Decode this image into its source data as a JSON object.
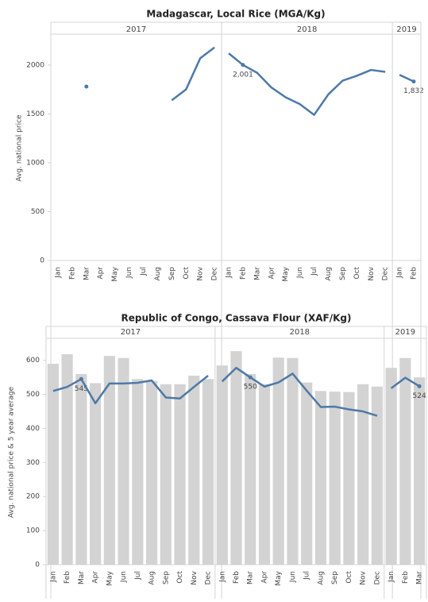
{
  "chart_data": [
    {
      "type": "line",
      "title": "Madagascar, Local Rice (MGA/Kg)",
      "y_label": "Avg. national price",
      "ylim": [
        0,
        2300
      ],
      "yticks": [
        0,
        500,
        1000,
        1500,
        2000
      ],
      "color": "#4e79a7",
      "panels": [
        {
          "label": "2017",
          "categories": [
            "Jan",
            "Feb",
            "Mar",
            "Apr",
            "May",
            "Jun",
            "Jul",
            "Aug",
            "Sep",
            "Oct",
            "Nov",
            "Dec"
          ],
          "values": [
            null,
            null,
            1780,
            null,
            null,
            null,
            null,
            null,
            1640,
            1750,
            2070,
            2180
          ]
        },
        {
          "label": "2018",
          "categories": [
            "Jan",
            "Feb",
            "Mar",
            "Apr",
            "May",
            "Jun",
            "Jul",
            "Aug",
            "Sep",
            "Oct",
            "Nov",
            "Dec"
          ],
          "values": [
            2120,
            2001,
            1920,
            1770,
            1670,
            1600,
            1490,
            1700,
            1840,
            1890,
            1950,
            1930
          ],
          "value_labels": [
            null,
            "2,001",
            null,
            null,
            null,
            null,
            null,
            null,
            null,
            null,
            null,
            null
          ]
        },
        {
          "label": "2019",
          "categories": [
            "Jan",
            "Feb"
          ],
          "values": [
            1900,
            1832
          ],
          "value_labels": [
            null,
            "1,832"
          ]
        }
      ]
    },
    {
      "type": "bar",
      "title": "Republic of Congo, Cassava Flour (XAF/Kg)",
      "y_label": "Avg. national price & 5 year average",
      "ylim": [
        0,
        660
      ],
      "yticks": [
        0,
        100,
        200,
        300,
        400,
        500,
        600
      ],
      "panels": [
        {
          "label": "2017",
          "categories": [
            "Jan",
            "Feb",
            "Mar",
            "Apr",
            "May",
            "Jun",
            "Jul",
            "Aug",
            "Sep",
            "Oct",
            "Nov",
            "Dec"
          ],
          "series": [
            {
              "type": "bar",
              "color": "#d3d3d3",
              "values": [
                590,
                618,
                560,
                533,
                613,
                607,
                545,
                540,
                530,
                530,
                555,
                545
              ]
            },
            {
              "type": "line",
              "color": "#4e79a7",
              "values": [
                510,
                522,
                545,
                474,
                532,
                532,
                534,
                541,
                491,
                488,
                522,
                555
              ],
              "value_labels": [
                null,
                null,
                "545",
                null,
                null,
                null,
                null,
                null,
                null,
                null,
                null,
                null
              ]
            }
          ]
        },
        {
          "label": "2018",
          "categories": [
            "Jan",
            "Feb",
            "Mar",
            "Apr",
            "May",
            "Jun",
            "Jul",
            "Aug",
            "Sep",
            "Oct",
            "Nov",
            "Dec"
          ],
          "series": [
            {
              "type": "bar",
              "color": "#d3d3d3",
              "values": [
                585,
                627,
                560,
                530,
                608,
                607,
                535,
                510,
                508,
                507,
                530,
                523
              ]
            },
            {
              "type": "line",
              "color": "#4e79a7",
              "values": [
                538,
                578,
                550,
                523,
                535,
                561,
                511,
                463,
                464,
                456,
                450,
                437
              ],
              "value_labels": [
                null,
                null,
                "550",
                null,
                null,
                null,
                null,
                null,
                null,
                null,
                null,
                null
              ]
            }
          ]
        },
        {
          "label": "2019",
          "categories": [
            "Jan",
            "Feb",
            "Mar"
          ],
          "series": [
            {
              "type": "bar",
              "color": "#d3d3d3",
              "values": [
                578,
                607,
                550
              ]
            },
            {
              "type": "line",
              "color": "#4e79a7",
              "values": [
                518,
                549,
                524
              ],
              "value_labels": [
                null,
                null,
                "524"
              ]
            }
          ]
        }
      ]
    }
  ]
}
